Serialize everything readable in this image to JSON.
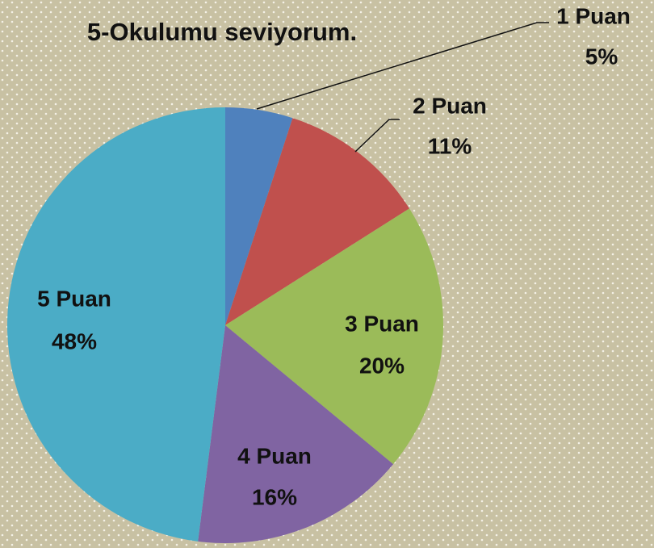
{
  "chart_data": {
    "type": "pie",
    "title": "5-Okulumu seviyorum.",
    "categories": [
      "1 Puan",
      "2 Puan",
      "3 Puan",
      "4 Puan",
      "5 Puan"
    ],
    "values": [
      5,
      11,
      20,
      16,
      48
    ],
    "value_labels": [
      "5%",
      "11%",
      "20%",
      "16%",
      "48%"
    ],
    "colors": [
      "#4f81bd",
      "#c0504d",
      "#9bbb59",
      "#8064a2",
      "#4bacc6"
    ]
  }
}
